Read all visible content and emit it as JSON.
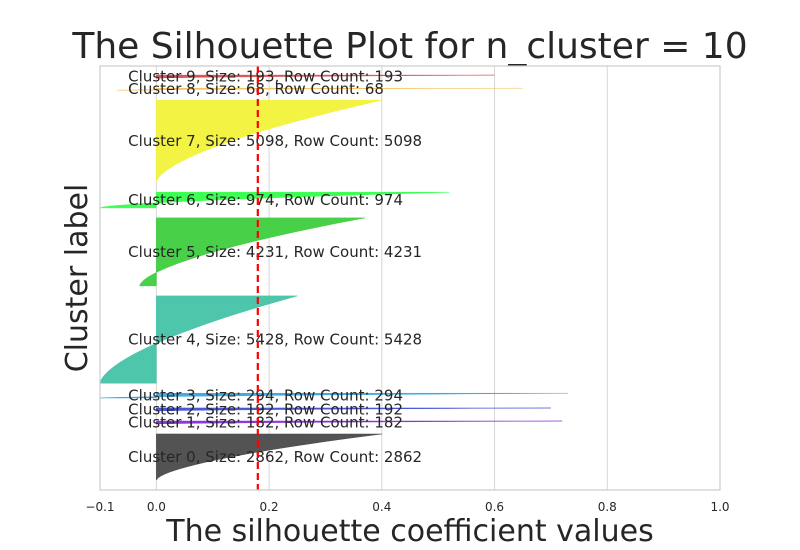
{
  "chart_data": {
    "type": "area",
    "title": "The Silhouette Plot for n_cluster = 10",
    "xlabel": "The silhouette coefficient values",
    "ylabel": "Cluster label",
    "xlim": [
      -0.1,
      1.0
    ],
    "xticks": [
      "−0.1",
      "0.0",
      "0.2",
      "0.4",
      "0.6",
      "0.8",
      "1.0"
    ],
    "xtick_values": [
      -0.1,
      0.0,
      0.2,
      0.4,
      0.6,
      0.8,
      1.0
    ],
    "grid": true,
    "average_silhouette": 0.18,
    "average_line_color": "#ff0000",
    "clusters": [
      {
        "id": 0,
        "label": "Cluster 0, Size: 2862, Row Count: 2862",
        "size": 2862,
        "min": 0.0,
        "max": 0.4,
        "color": "#4a4a4a"
      },
      {
        "id": 1,
        "label": "Cluster 1, Size: 182, Row Count: 182",
        "size": 182,
        "min": 0.0,
        "max": 0.72,
        "color": "#8a2be2"
      },
      {
        "id": 2,
        "label": "Cluster 2, Size: 192, Row Count: 192",
        "size": 192,
        "min": 0.0,
        "max": 0.7,
        "color": "#3f4fd6"
      },
      {
        "id": 3,
        "label": "Cluster 3, Size: 294, Row Count: 294",
        "size": 294,
        "min": -0.1,
        "max": 0.73,
        "color": "#35a8e0"
      },
      {
        "id": 4,
        "label": "Cluster 4, Size: 5428, Row Count: 5428",
        "size": 5428,
        "min": -0.1,
        "max": 0.25,
        "color": "#45c3a6"
      },
      {
        "id": 5,
        "label": "Cluster 5, Size: 4231, Row Count: 4231",
        "size": 4231,
        "min": -0.03,
        "max": 0.37,
        "color": "#3ecf3e"
      },
      {
        "id": 6,
        "label": "Cluster 6, Size: 974, Row Count: 974",
        "size": 974,
        "min": -0.1,
        "max": 0.52,
        "color": "#33ff4a"
      },
      {
        "id": 7,
        "label": "Cluster 7, Size: 5098, Row Count: 5098",
        "size": 5098,
        "min": 0.0,
        "max": 0.4,
        "color": "#f2f23a"
      },
      {
        "id": 8,
        "label": "Cluster 8, Size: 68, Row Count: 68",
        "size": 68,
        "min": -0.07,
        "max": 0.65,
        "color": "#f4c35a"
      },
      {
        "id": 9,
        "label": "Cluster 9, Size: 193, Row Count: 193",
        "size": 193,
        "min": 0.0,
        "max": 0.6,
        "color": "#e04848"
      }
    ]
  }
}
